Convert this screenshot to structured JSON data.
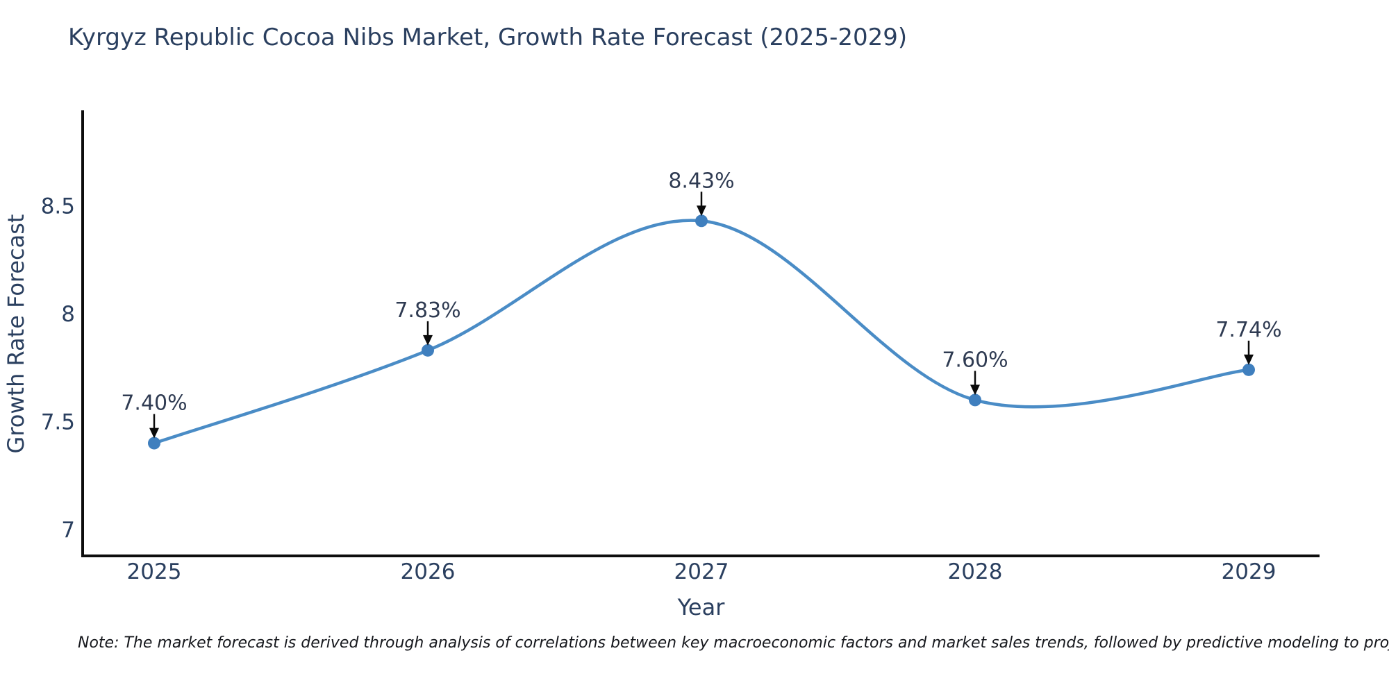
{
  "title": "Kyrgyz Republic Cocoa Nibs Market, Growth Rate Forecast (2025-2029)",
  "note": "Note: The market forecast is derived through analysis of correlations between key macroeconomic factors and market sales trends, followed by predictive modeling to project future sales",
  "chart_data": {
    "type": "line",
    "title": "Kyrgyz Republic Cocoa Nibs Market, Growth Rate Forecast (2025-2029)",
    "xlabel": "Year",
    "ylabel": "Growth Rate Forecast",
    "x": [
      2025,
      2026,
      2027,
      2028,
      2029
    ],
    "series": [
      {
        "name": "Growth Rate Forecast",
        "values": [
          7.4,
          7.83,
          8.43,
          7.6,
          7.74
        ]
      }
    ],
    "point_labels": [
      "7.40%",
      "7.83%",
      "8.43%",
      "7.60%",
      "7.74%"
    ],
    "xticks": [
      "2025",
      "2026",
      "2027",
      "2028",
      "2029"
    ],
    "yticks": [
      7,
      7.5,
      8,
      8.5
    ],
    "ylim": [
      6.85,
      8.95
    ],
    "line_shape": "spline",
    "grid": false,
    "legend": "none",
    "colors": {
      "line": "#4a8cc6",
      "marker": "#3f7fbe",
      "axis": "#0d0d0d",
      "text": "#2a3f5f",
      "annotation": "#2f3b52",
      "arrow": "#0a0a0a"
    }
  }
}
